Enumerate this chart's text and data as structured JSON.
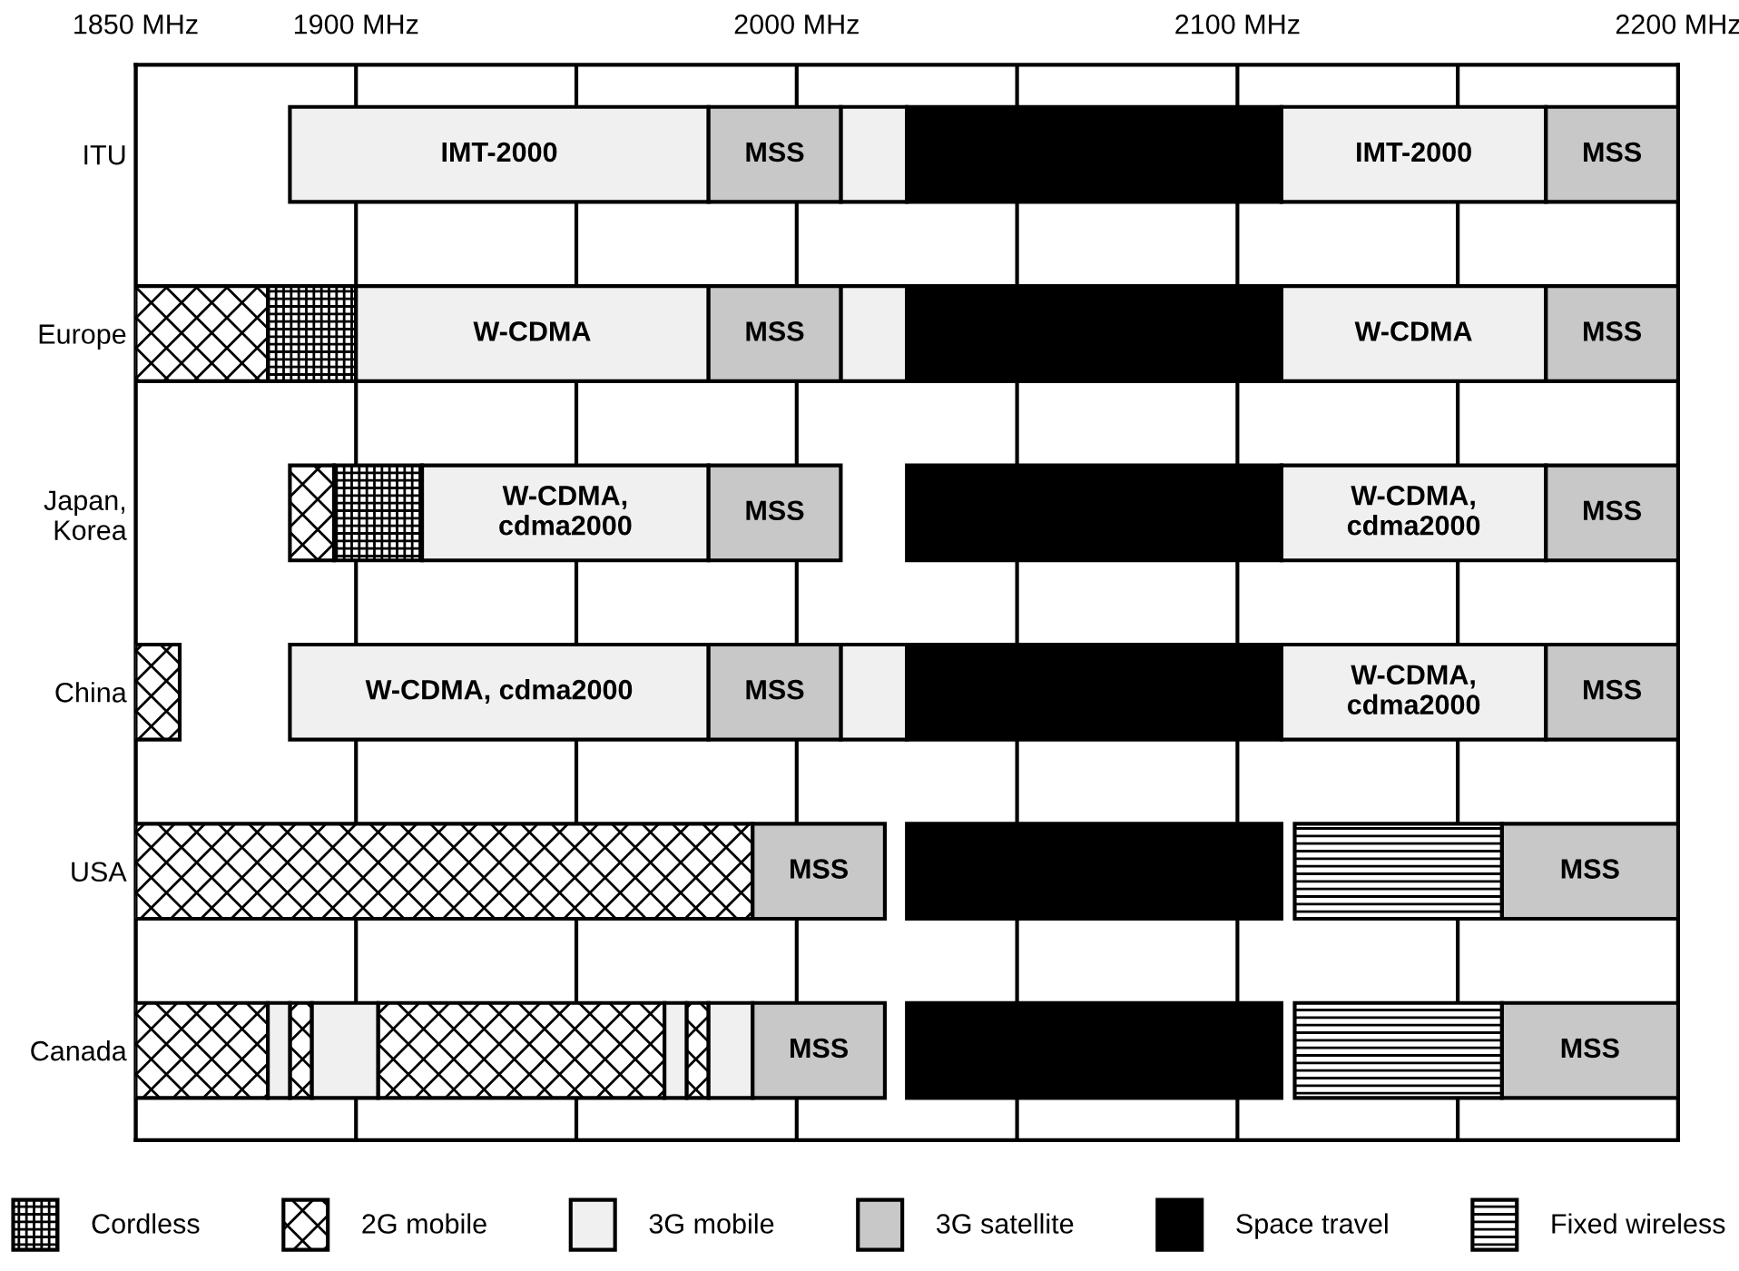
{
  "chart_data": {
    "type": "bar",
    "orientation": "horizontal",
    "categories": [
      "ITU",
      "Europe",
      "Japan,\nKorea",
      "China",
      "USA",
      "Canada"
    ],
    "series": [
      {
        "name": "Cordless",
        "color": "#000000",
        "base": [
          null,
          1880,
          1895,
          null,
          null,
          null
        ],
        "values": [
          null,
          20,
          20,
          null,
          null,
          null
        ]
      },
      {
        "name": "2G mobile",
        "color": "#000000",
        "base": [
          null,
          1850,
          1885,
          1850,
          1850,
          1850
        ],
        "values": [
          null,
          30,
          10,
          10,
          140,
          30
        ]
      },
      {
        "color": "#000000",
        "base": [
          null,
          null,
          null,
          null,
          null,
          1885
        ],
        "values": [
          null,
          null,
          null,
          null,
          null,
          5
        ]
      },
      {
        "color": "#000000",
        "base": [
          null,
          null,
          null,
          null,
          null,
          1905
        ],
        "values": [
          null,
          null,
          null,
          null,
          null,
          65
        ]
      },
      {
        "color": "#000000",
        "base": [
          null,
          null,
          null,
          null,
          null,
          1975
        ],
        "values": [
          null,
          null,
          null,
          null,
          null,
          5
        ]
      },
      {
        "name": "3G mobile",
        "color": "#f0f0f0",
        "base": [
          1885,
          1900,
          1915,
          1885,
          null,
          1880
        ],
        "values": [
          95,
          80,
          65,
          95,
          null,
          5
        ],
        "value_labels": [
          "IMT-2000",
          "W-CDMA",
          "W-CDMA,\ncdma2000",
          "W-CDMA, cdma2000",
          null,
          null
        ]
      },
      {
        "color": "#f0f0f0",
        "base": [
          2010,
          2010,
          null,
          2010,
          null,
          1890
        ],
        "values": [
          15,
          15,
          null,
          15,
          null,
          15
        ]
      },
      {
        "color": "#f0f0f0",
        "base": [
          2110,
          2110,
          2110,
          2110,
          null,
          1970
        ],
        "values": [
          60,
          60,
          60,
          60,
          null,
          5
        ],
        "value_labels": [
          "IMT-2000",
          "W-CDMA",
          "W-CDMA,\ncdma2000",
          "W-CDMA,\ncdma2000",
          null,
          null
        ]
      },
      {
        "color": "#f0f0f0",
        "base": [
          null,
          null,
          null,
          null,
          null,
          1980
        ],
        "values": [
          null,
          null,
          null,
          null,
          null,
          10
        ]
      },
      {
        "name": "3G satellite",
        "color": "#c8c8c8",
        "base": [
          1980,
          1980,
          1980,
          1980,
          1990,
          1990
        ],
        "values": [
          30,
          30,
          30,
          30,
          30,
          30
        ],
        "value_labels": [
          "MSS",
          "MSS",
          "MSS",
          "MSS",
          "MSS",
          "MSS"
        ]
      },
      {
        "color": "#c8c8c8",
        "base": [
          2170,
          2170,
          2170,
          2170,
          2160,
          2160
        ],
        "values": [
          30,
          30,
          30,
          30,
          40,
          40
        ],
        "value_labels": [
          "MSS",
          "MSS",
          "MSS",
          "MSS",
          "MSS",
          "MSS"
        ]
      },
      {
        "name": "Space travel",
        "color": "#000000",
        "base": [
          2025,
          2025,
          2025,
          2025,
          2025,
          2025
        ],
        "values": [
          85,
          85,
          85,
          85,
          85,
          85
        ]
      },
      {
        "name": "Fixed wireless",
        "color": "#000000",
        "base": [
          null,
          null,
          null,
          null,
          2113,
          2113
        ],
        "values": [
          null,
          null,
          null,
          null,
          47,
          47
        ]
      }
    ],
    "xlim": [
      1850,
      2200
    ],
    "xticks": [
      {
        "value": 1850,
        "label": "1850 MHz"
      },
      {
        "value": 1900,
        "label": "1900 MHz"
      },
      {
        "value": 1950,
        "label": null
      },
      {
        "value": 2000,
        "label": "2000 MHz"
      },
      {
        "value": 2050,
        "label": null
      },
      {
        "value": 2100,
        "label": "2100 MHz"
      },
      {
        "value": 2150,
        "label": null
      },
      {
        "value": 2200,
        "label": "2200 MHz"
      }
    ],
    "grid": "x",
    "legend": "bottom"
  }
}
